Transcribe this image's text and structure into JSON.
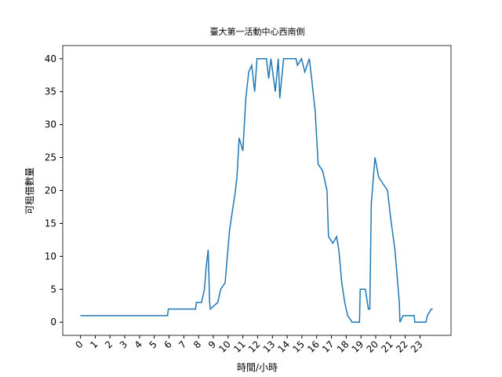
{
  "chart_data": {
    "type": "line",
    "title": "臺大第一活動中心西南側",
    "xlabel": "時間/小時",
    "ylabel": "可租借數量",
    "x": [
      0,
      5.9,
      5.95,
      7.8,
      7.85,
      8.2,
      8.4,
      8.5,
      8.65,
      8.75,
      8.8,
      9.3,
      9.5,
      9.8,
      9.95,
      10.1,
      10.3,
      10.5,
      10.6,
      10.75,
      11.0,
      11.2,
      11.4,
      11.6,
      11.8,
      11.96,
      12.6,
      12.75,
      12.9,
      13.2,
      13.4,
      13.5,
      13.76,
      14.6,
      14.7,
      14.97,
      15.2,
      15.5,
      15.66,
      15.9,
      16.1,
      16.4,
      16.7,
      16.8,
      17.1,
      17.35,
      17.5,
      17.7,
      17.9,
      18.1,
      18.4,
      18.9,
      18.95,
      19.3,
      19.5,
      19.6,
      19.7,
      19.95,
      20.2,
      20.5,
      20.8,
      21.0,
      21.3,
      21.6,
      21.64,
      21.85,
      22.6,
      22.65,
      23.4,
      23.5,
      23.76,
      23.86
    ],
    "series": [
      {
        "color": "#1f77b4",
        "values": [
          1,
          1,
          2,
          2,
          3,
          3,
          5,
          8,
          11,
          3,
          2,
          3,
          5,
          6,
          10,
          14,
          17,
          20,
          22,
          28,
          26,
          34,
          38,
          39,
          35,
          40,
          40,
          37,
          40,
          35,
          40,
          34,
          40,
          40,
          39,
          40,
          38,
          40,
          37,
          32,
          24,
          23,
          20,
          13,
          12,
          13,
          11,
          6,
          3,
          1,
          0,
          0,
          5,
          5,
          2,
          2,
          18,
          25,
          22,
          21,
          20,
          16,
          11,
          3,
          0,
          1,
          1,
          0,
          0,
          1,
          2,
          2
        ]
      }
    ],
    "xlim": [
      -1.2,
      25.1
    ],
    "ylim": [
      -2,
      42
    ],
    "xticks": [
      0,
      1,
      2,
      3,
      4,
      5,
      6,
      7,
      8,
      9,
      10,
      11,
      12,
      13,
      14,
      15,
      16,
      17,
      18,
      19,
      20,
      21,
      22,
      23
    ],
    "yticks": [
      0,
      5,
      10,
      15,
      20,
      25,
      30,
      35,
      40
    ]
  }
}
